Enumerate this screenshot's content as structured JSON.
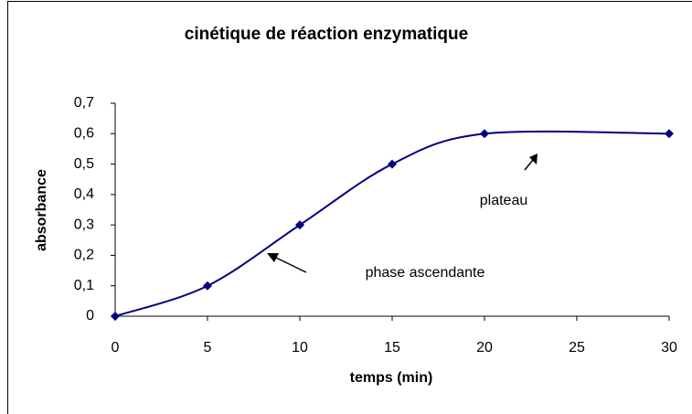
{
  "chart_data": {
    "type": "line",
    "title": "cinétique de réaction enzymatique",
    "xlabel": "temps (min)",
    "ylabel": "absorbance",
    "x": [
      0,
      5,
      10,
      15,
      20,
      30
    ],
    "series": [
      {
        "name": "absorbance",
        "color": "#000080",
        "values": [
          0,
          0.1,
          0.3,
          0.5,
          0.6,
          0.6
        ]
      }
    ],
    "xlim": [
      0,
      30
    ],
    "xticks": [
      0,
      5,
      10,
      15,
      20,
      25,
      30
    ],
    "ylim": [
      0,
      0.7
    ],
    "yticks": [
      0,
      {
        "value": 0.1,
        "label": "0,1"
      },
      {
        "value": 0.2,
        "label": "0,2"
      },
      {
        "value": 0.3,
        "label": "0,3"
      },
      {
        "value": 0.4,
        "label": "0,4"
      },
      {
        "value": 0.5,
        "label": "0,5"
      },
      {
        "value": 0.6,
        "label": "0,6"
      },
      {
        "value": 0.7,
        "label": "0,7"
      }
    ],
    "grid": false,
    "smooth": true,
    "annotations": [
      "plateau",
      "phase ascendante"
    ]
  }
}
